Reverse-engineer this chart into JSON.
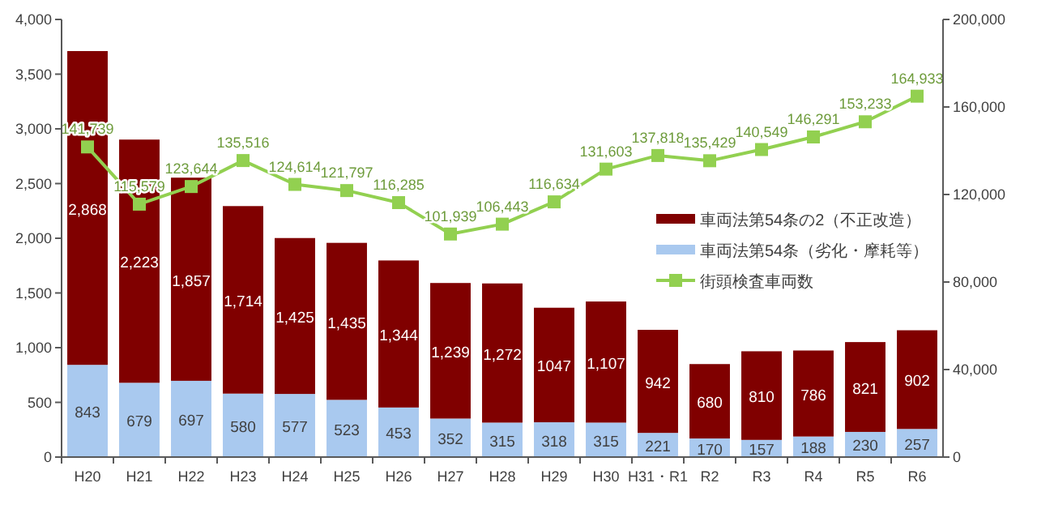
{
  "chart_data": {
    "type": "bar",
    "stacked": true,
    "categories": [
      "H20",
      "H21",
      "H22",
      "H23",
      "H24",
      "H25",
      "H26",
      "H27",
      "H28",
      "H29",
      "H30",
      "H31・R1",
      "R2",
      "R3",
      "R4",
      "R5",
      "R6"
    ],
    "series": [
      {
        "name": "車両法第54条（劣化・摩耗等）",
        "color": "#a9c9ef",
        "values": [
          843,
          679,
          697,
          580,
          577,
          523,
          453,
          352,
          315,
          318,
          315,
          221,
          170,
          157,
          188,
          230,
          257
        ],
        "value_labels": [
          "843",
          "679",
          "697",
          "580",
          "577",
          "523",
          "453",
          "352",
          "315",
          "318",
          "315",
          "221",
          "170",
          "157",
          "188",
          "230",
          "257"
        ]
      },
      {
        "name": "車両法第54条の2（不正改造）",
        "color": "#800000",
        "values": [
          2868,
          2223,
          1857,
          1714,
          1425,
          1435,
          1344,
          1239,
          1272,
          1047,
          1107,
          942,
          680,
          810,
          786,
          821,
          902
        ],
        "value_labels": [
          "2,868",
          "2,223",
          "1,857",
          "1,714",
          "1,425",
          "1,435",
          "1,344",
          "1,239",
          "1,272",
          "1047",
          "1,107",
          "942",
          "680",
          "810",
          "786",
          "821",
          "902"
        ]
      },
      {
        "name": "街頭検査車両数",
        "type": "line",
        "axis": "y2",
        "color": "#92d050",
        "marker": "square",
        "values": [
          141739,
          115579,
          123644,
          135516,
          124614,
          121797,
          116285,
          101939,
          106443,
          116634,
          131603,
          137818,
          135429,
          140549,
          146291,
          153233,
          164933
        ],
        "value_labels": [
          "141,739",
          "115,579",
          "123,644",
          "135,516",
          "124,614",
          "121,797",
          "116,285",
          "101,939",
          "106,443",
          "116,634",
          "131,603",
          "137,818",
          "135,429",
          "140,549",
          "146,291",
          "153,233",
          "164,933"
        ]
      }
    ],
    "ylim": [
      0,
      4000
    ],
    "yticks": [
      0,
      {
        "value": 500,
        "label": "500"
      },
      {
        "value": 1000,
        "label": "1,000"
      },
      {
        "value": 1500,
        "label": "1,500"
      },
      {
        "value": 2000,
        "label": "2,000"
      },
      {
        "value": 2500,
        "label": "2,500"
      },
      {
        "value": 3000,
        "label": "3,000"
      },
      {
        "value": 3500,
        "label": "3,500"
      },
      {
        "value": 4000,
        "label": "4,000"
      }
    ],
    "y2lim": [
      0,
      200000
    ],
    "y2ticks": [
      0,
      {
        "value": 40000,
        "label": "40,000"
      },
      {
        "value": 80000,
        "label": "80,000"
      },
      {
        "value": 120000,
        "label": "120,000"
      },
      {
        "value": 160000,
        "label": "160,000"
      },
      {
        "value": 200000,
        "label": "200,000"
      }
    ],
    "legend": "right",
    "grid": false
  }
}
